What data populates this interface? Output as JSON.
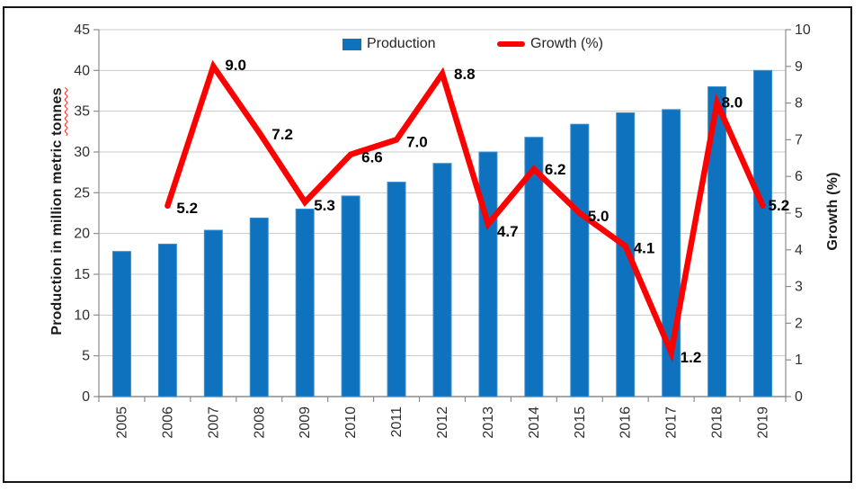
{
  "chart_data": {
    "type": "bar",
    "subtype": "combo-bar-line",
    "categories": [
      "2005",
      "2006",
      "2007",
      "2008",
      "2009",
      "2010",
      "2011",
      "2012",
      "2013",
      "2014",
      "2015",
      "2016",
      "2017",
      "2018",
      "2019"
    ],
    "series": [
      {
        "name": "Production",
        "chart": "bar",
        "axis": "left",
        "values": [
          17.8,
          18.7,
          20.4,
          21.9,
          23.0,
          24.6,
          26.3,
          28.6,
          30.0,
          31.8,
          33.4,
          34.8,
          35.2,
          38.0,
          40.0
        ]
      },
      {
        "name": "Growth (%)",
        "chart": "line",
        "axis": "right",
        "values": [
          null,
          5.2,
          9.0,
          7.2,
          5.3,
          6.6,
          7.0,
          8.8,
          4.7,
          6.2,
          5.0,
          4.1,
          1.2,
          8.0,
          5.2
        ],
        "point_labels": [
          "",
          "5.2",
          "9.0",
          "7.2",
          "5.3",
          "6.6",
          "7.0",
          "8.8",
          "4.7",
          "6.2",
          "5.0",
          "4.1",
          "1.2",
          "8.0",
          "5.2"
        ]
      }
    ],
    "left_axis": {
      "title": "Production in million metric tonnes",
      "min": 0,
      "max": 45,
      "step": 5,
      "tick_labels": [
        "0",
        "5",
        "10",
        "15",
        "20",
        "25",
        "30",
        "35",
        "40",
        "45"
      ]
    },
    "right_axis": {
      "title": "Growth (%)",
      "min": 0,
      "max": 10,
      "step": 1,
      "tick_labels": [
        "0",
        "1",
        "2",
        "3",
        "4",
        "5",
        "6",
        "7",
        "8",
        "9",
        "10"
      ]
    },
    "grid": "horizontal",
    "legend_position": "top-center"
  },
  "left_axis_title": {
    "prefix": "Production in million metric",
    "underlined_word": "tonnes"
  },
  "right_axis_title": "Growth (%)",
  "legend": {
    "items": [
      {
        "label": "Production"
      },
      {
        "label": "Growth (%)"
      }
    ]
  },
  "colors": {
    "bar_fill": "#0e72bf",
    "bar_edge": "#3e90cf",
    "line": "#fe0000",
    "grid": "#c8c8c8",
    "axis": "#8c8c8c",
    "tick_text": "#303030",
    "data_label": "#000000",
    "frame": "#141414"
  }
}
